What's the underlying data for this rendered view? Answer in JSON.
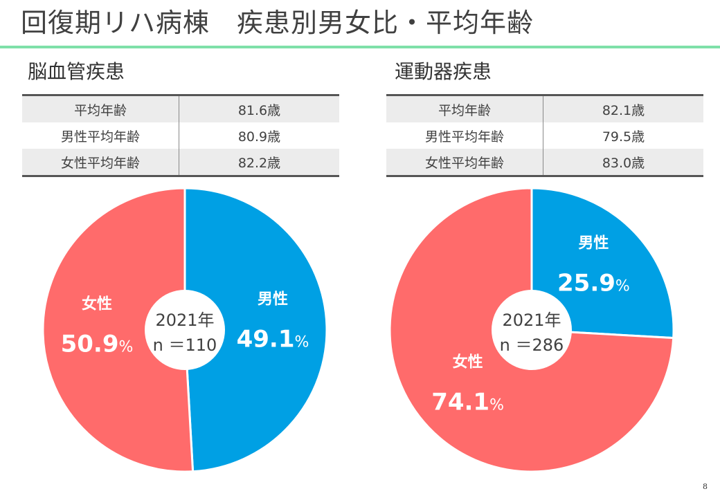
{
  "page": {
    "title": "回復期リハ病棟　疾患別男女比・平均年齢",
    "page_number": "8"
  },
  "panels": [
    {
      "heading": "脳血管疾患",
      "stats": [
        {
          "label": "平均年齢",
          "value": "81.6歳"
        },
        {
          "label": "男性平均年齢",
          "value": "80.9歳"
        },
        {
          "label": "女性平均年齢",
          "value": "82.2歳"
        }
      ],
      "center_line1": "2021年",
      "center_line2": "n ＝110"
    },
    {
      "heading": "運動器疾患",
      "stats": [
        {
          "label": "平均年齢",
          "value": "82.1歳"
        },
        {
          "label": "男性平均年齢",
          "value": "79.5歳"
        },
        {
          "label": "女性平均年齢",
          "value": "83.0歳"
        }
      ],
      "center_line1": "2021年",
      "center_line2": "n ＝286"
    }
  ],
  "colors": {
    "male": "#00a0e4",
    "female": "#ff6b6b",
    "accent_rule": "#7ee0a8"
  },
  "chart_data": [
    {
      "type": "pie",
      "categories": [
        "男性",
        "女性"
      ],
      "values": [
        49.1,
        50.9
      ],
      "value_labels": [
        "49.1",
        "50.9"
      ],
      "unit": "%",
      "colors": [
        "#00a0e4",
        "#ff6b6b"
      ]
    },
    {
      "type": "pie",
      "categories": [
        "男性",
        "女性"
      ],
      "values": [
        25.9,
        74.1
      ],
      "value_labels": [
        "25.9",
        "74.1"
      ],
      "unit": "%",
      "colors": [
        "#00a0e4",
        "#ff6b6b"
      ]
    }
  ]
}
